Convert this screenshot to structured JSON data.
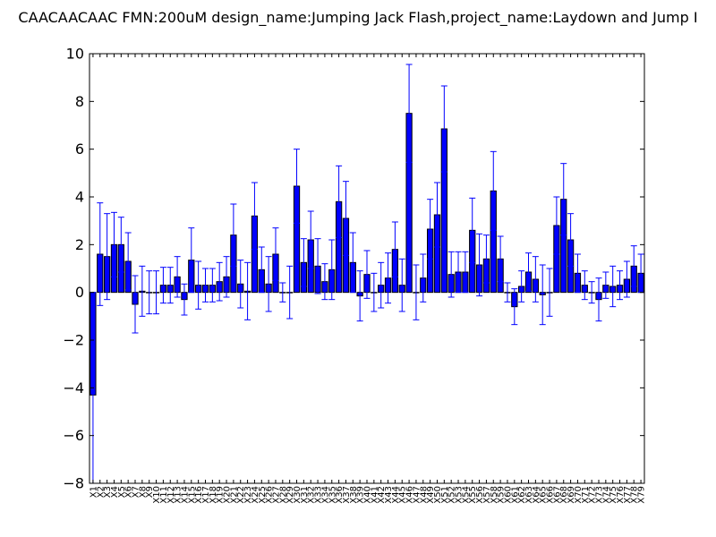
{
  "chart_data": {
    "type": "bar",
    "title": "CAACAACAAC  FMN:200uM  design_name:Jumping Jack Flash,project_name:Laydown and Jump I",
    "ylim": [
      -8,
      10
    ],
    "yticks": [
      -8,
      -6,
      -4,
      -2,
      0,
      2,
      4,
      6,
      8,
      10
    ],
    "grid": false,
    "colors": {
      "bar": "#0000ff",
      "error": "#0000ff",
      "frame": "#000000"
    },
    "categories": [
      "X1",
      "X2",
      "X3",
      "X4",
      "X5",
      "X6",
      "X7",
      "X8",
      "X9",
      "X10",
      "X11",
      "X12",
      "X13",
      "X14",
      "X15",
      "X16",
      "X17",
      "X18",
      "X19",
      "X20",
      "X21",
      "X22",
      "X23",
      "X24",
      "X25",
      "X26",
      "X27",
      "X28",
      "X29",
      "X30",
      "X31",
      "X32",
      "X33",
      "X34",
      "X35",
      "X36",
      "X37",
      "X38",
      "X39",
      "X40",
      "X41",
      "X42",
      "X43",
      "X44",
      "X45",
      "X46",
      "X47",
      "X48",
      "X49",
      "X50",
      "X51",
      "X52",
      "X53",
      "X54",
      "X55",
      "X56",
      "X57",
      "X58",
      "X59",
      "X60",
      "X61",
      "X62",
      "X63",
      "X64",
      "X65",
      "X66",
      "X67",
      "X68",
      "X69",
      "X70",
      "X71",
      "X72",
      "X73",
      "X74",
      "X75",
      "X76",
      "X77",
      "X78",
      "X79"
    ],
    "values": [
      -4.3,
      1.6,
      1.5,
      2.0,
      2.0,
      1.3,
      -0.5,
      0.05,
      0.0,
      0.0,
      0.3,
      0.3,
      0.65,
      -0.3,
      1.35,
      0.3,
      0.3,
      0.3,
      0.45,
      0.65,
      2.4,
      0.35,
      0.05,
      3.2,
      0.95,
      0.35,
      1.6,
      0.0,
      0.0,
      4.45,
      1.25,
      2.2,
      1.1,
      0.45,
      0.95,
      3.8,
      3.1,
      1.25,
      -0.15,
      0.75,
      0.0,
      0.3,
      0.6,
      1.8,
      0.3,
      7.5,
      0.0,
      0.6,
      2.65,
      3.25,
      6.85,
      0.75,
      0.85,
      0.85,
      2.6,
      1.15,
      1.4,
      4.25,
      1.4,
      0.0,
      -0.6,
      0.25,
      0.85,
      0.55,
      -0.1,
      0.0,
      2.8,
      3.9,
      2.2,
      0.8,
      0.3,
      0.0,
      -0.3,
      0.3,
      0.25,
      0.3,
      0.55,
      1.1,
      0.8
    ],
    "errors": [
      4.3,
      2.15,
      1.8,
      1.35,
      1.15,
      1.2,
      1.2,
      1.05,
      0.9,
      0.9,
      0.75,
      0.75,
      0.85,
      0.65,
      1.35,
      1.0,
      0.7,
      0.7,
      0.8,
      0.85,
      1.3,
      1.0,
      1.2,
      1.4,
      0.95,
      1.15,
      1.1,
      0.4,
      1.1,
      1.55,
      1.0,
      1.2,
      1.15,
      0.75,
      1.25,
      1.5,
      1.55,
      1.25,
      1.05,
      1.0,
      0.8,
      0.95,
      1.05,
      1.15,
      1.1,
      2.05,
      1.15,
      1.0,
      1.25,
      1.35,
      1.8,
      0.95,
      0.85,
      0.85,
      1.35,
      1.3,
      1.0,
      1.65,
      0.95,
      0.4,
      0.75,
      0.65,
      0.8,
      0.95,
      1.25,
      1.0,
      1.2,
      1.5,
      1.1,
      0.8,
      0.6,
      0.45,
      0.9,
      0.55,
      0.85,
      0.6,
      0.75,
      0.85,
      0.8
    ]
  }
}
